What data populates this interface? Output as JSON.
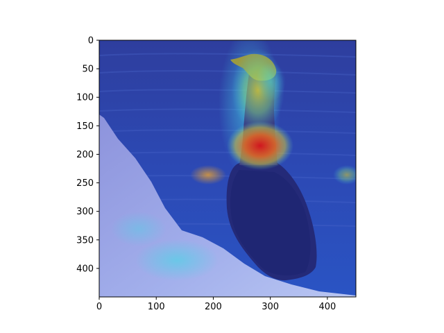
{
  "x_axis": {
    "ticks": [
      {
        "value": 0,
        "label": "0"
      },
      {
        "value": 100,
        "label": "100"
      },
      {
        "value": 200,
        "label": "200"
      },
      {
        "value": 300,
        "label": "300"
      },
      {
        "value": 400,
        "label": "400"
      }
    ],
    "range": [
      0,
      450
    ]
  },
  "y_axis": {
    "ticks": [
      {
        "value": 0,
        "label": "0"
      },
      {
        "value": 50,
        "label": "50"
      },
      {
        "value": 100,
        "label": "100"
      },
      {
        "value": 150,
        "label": "150"
      },
      {
        "value": 200,
        "label": "200"
      },
      {
        "value": 250,
        "label": "250"
      },
      {
        "value": 300,
        "label": "300"
      },
      {
        "value": 350,
        "label": "350"
      },
      {
        "value": 400,
        "label": "400"
      }
    ],
    "range": [
      0,
      450
    ],
    "inverted": true
  },
  "image": {
    "subject": "cormorant-bird-on-rock",
    "overlay": "jet-colormap-heatmap",
    "colors": {
      "water": "#2a44b8",
      "rock": "#9aa6e6",
      "bird_body": "#242a78",
      "hot": "#d8201e",
      "warm": "#c8c03a",
      "cool": "#2fd0e0"
    }
  }
}
